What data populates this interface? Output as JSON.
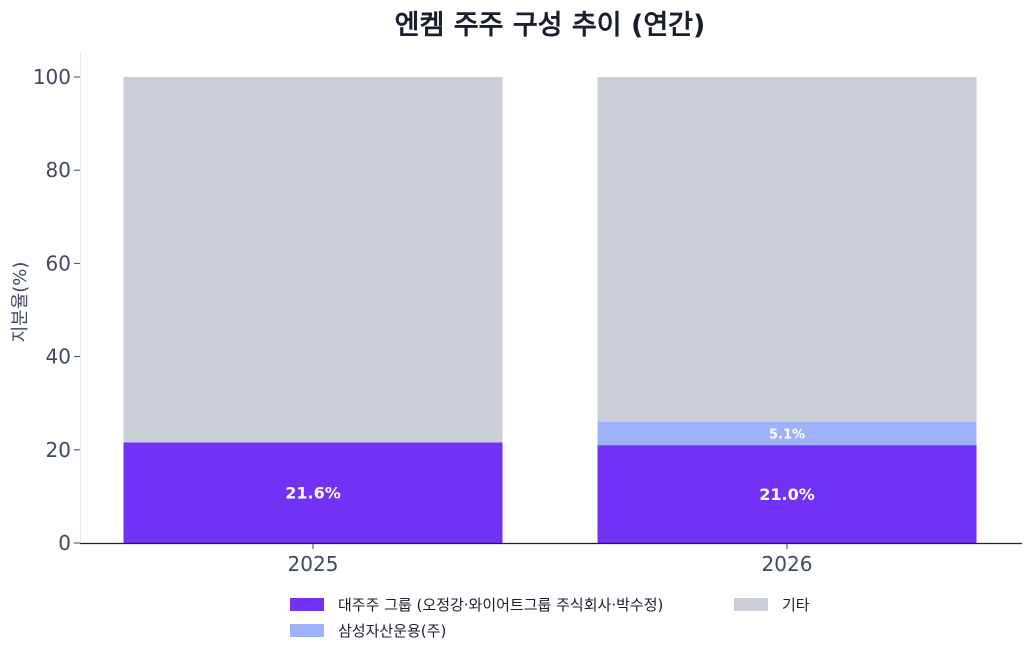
{
  "chart_data": {
    "type": "bar",
    "stacked": true,
    "title": "엔켐 주주 구성 추이 (연간)",
    "xlabel": "",
    "ylabel": "지분율(%)",
    "ylim": [
      0,
      100
    ],
    "yticks": [
      "0",
      "20",
      "40",
      "60",
      "80",
      "100"
    ],
    "categories": [
      "2025",
      "2026"
    ],
    "series": [
      {
        "name": "대주주 그룹 (오정강·와이어트그룹 주식회사·박수정)",
        "color": "#7132f5",
        "values": [
          21.6,
          21.0
        ],
        "labels": [
          "21.6%",
          "21.0%"
        ]
      },
      {
        "name": "삼성자산운용(주)",
        "color": "#9db2fa",
        "values": [
          0,
          5.1
        ],
        "labels": [
          "",
          "5.1%"
        ]
      },
      {
        "name": "기타",
        "color": "#c9ced7",
        "values": [
          78.4,
          73.9
        ],
        "labels": [
          "",
          ""
        ]
      }
    ],
    "legend_position": "bottom",
    "grid": false
  }
}
